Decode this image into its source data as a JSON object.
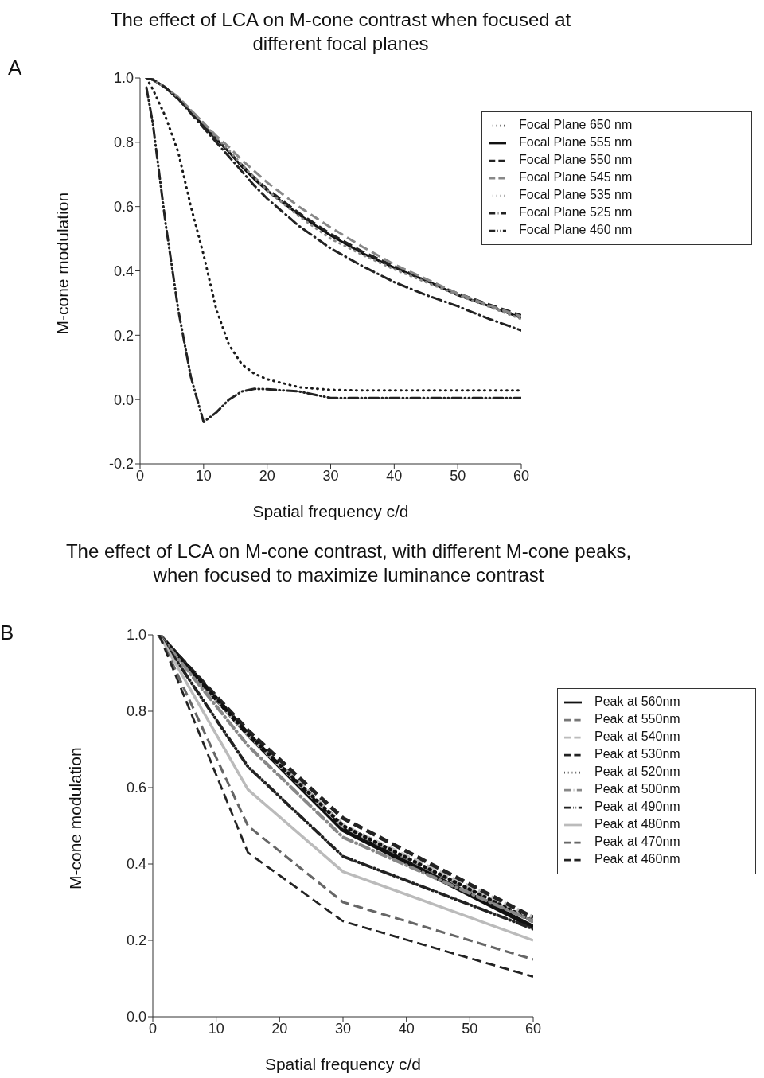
{
  "chart_data": [
    {
      "type": "line",
      "title": "The effect of LCA on M-cone contrast when focused at different focal planes",
      "xlabel": "Spatial frequency c/d",
      "ylabel": "M-cone modulation",
      "annotations": [
        "A"
      ],
      "legend": "top right",
      "xlim": [
        0,
        60
      ],
      "xticks": [
        0,
        10,
        20,
        30,
        40,
        50,
        60
      ],
      "ylim": [
        -0.2,
        1.0
      ],
      "yticks": [
        {
          "value": -0.2,
          "label": "-0.2"
        },
        {
          "value": 0,
          "label": "0.0"
        },
        {
          "value": 0.2,
          "label": "0.2"
        },
        {
          "value": 0.4,
          "label": "0.4"
        },
        {
          "value": 0.6,
          "label": "0.6"
        },
        {
          "value": 0.8,
          "label": "0.8"
        },
        {
          "value": 1.0,
          "label": "1.0"
        }
      ],
      "x": [
        1,
        2,
        4,
        6,
        8,
        10,
        12,
        14,
        16,
        18,
        20,
        25,
        30,
        35,
        40,
        45,
        50,
        55,
        60
      ],
      "series": [
        {
          "name": "Focal Plane 650 nm",
          "color": "#1a1a1a",
          "line_style": "dotted",
          "values": [
            1,
            0.965,
            0.88,
            0.77,
            0.6,
            0.45,
            0.28,
            0.17,
            0.11,
            0.08,
            0.063,
            0.038,
            0.03,
            0.028,
            0.028,
            0.028,
            0.028,
            0.028,
            0.028
          ]
        },
        {
          "name": "Focal Plane 555 nm",
          "color": "#111111",
          "line_style": "solid",
          "values": [
            1,
            0.995,
            0.97,
            0.935,
            0.895,
            0.85,
            0.81,
            0.77,
            0.725,
            0.685,
            0.65,
            0.575,
            0.51,
            0.455,
            0.41,
            0.37,
            0.325,
            0.29,
            0.254
          ]
        },
        {
          "name": "Focal Plane 550 nm",
          "color": "#222222",
          "line_style": "dashed",
          "values": [
            1,
            0.995,
            0.97,
            0.935,
            0.895,
            0.85,
            0.81,
            0.77,
            0.73,
            0.69,
            0.655,
            0.58,
            0.515,
            0.46,
            0.415,
            0.37,
            0.33,
            0.295,
            0.262
          ]
        },
        {
          "name": "Focal Plane 545 nm",
          "color": "#888888",
          "line_style": "dashed",
          "values": [
            1,
            0.995,
            0.97,
            0.94,
            0.9,
            0.86,
            0.82,
            0.785,
            0.745,
            0.71,
            0.675,
            0.6,
            0.535,
            0.475,
            0.42,
            0.375,
            0.33,
            0.292,
            0.258
          ]
        },
        {
          "name": "Focal Plane 535 nm",
          "color": "#888888",
          "line_style": "dotted",
          "values": [
            1,
            0.995,
            0.97,
            0.94,
            0.9,
            0.86,
            0.815,
            0.775,
            0.73,
            0.69,
            0.65,
            0.57,
            0.5,
            0.45,
            0.405,
            0.365,
            0.325,
            0.288,
            0.25
          ]
        },
        {
          "name": "Focal Plane 525 nm",
          "color": "#222222",
          "line_style": "dashdot",
          "values": [
            1,
            0.995,
            0.97,
            0.935,
            0.89,
            0.845,
            0.8,
            0.755,
            0.71,
            0.665,
            0.625,
            0.54,
            0.47,
            0.415,
            0.365,
            0.325,
            0.29,
            0.25,
            0.215
          ]
        },
        {
          "name": "Focal Plane 460 nm",
          "color": "#222222",
          "line_style": "dashdotdot",
          "values": [
            0.97,
            0.86,
            0.55,
            0.28,
            0.07,
            -0.07,
            -0.04,
            0.0,
            0.025,
            0.033,
            0.032,
            0.025,
            0.005,
            0.005,
            0.005,
            0.005,
            0.005,
            0.005,
            0.005
          ]
        }
      ]
    },
    {
      "type": "line",
      "title": "The effect of LCA on M-cone contrast, with different M-cone peaks, when focused to maximize luminance contrast",
      "xlabel": "Spatial frequency c/d",
      "ylabel": "M-cone modulation",
      "annotations": [
        "B"
      ],
      "legend": "right",
      "xlim": [
        0,
        60
      ],
      "xticks": [
        0,
        10,
        20,
        30,
        40,
        50,
        60
      ],
      "ylim": [
        0,
        1.0
      ],
      "yticks": [
        {
          "value": 0,
          "label": "0.0"
        },
        {
          "value": 0.2,
          "label": "0.2"
        },
        {
          "value": 0.4,
          "label": "0.4"
        },
        {
          "value": 0.6,
          "label": "0.6"
        },
        {
          "value": 0.8,
          "label": "0.8"
        },
        {
          "value": 1.0,
          "label": "1.0"
        }
      ],
      "x": [
        1,
        15,
        30,
        60
      ],
      "series": [
        {
          "name": "Peak at 560nm",
          "color": "#111111",
          "line_style": "solid",
          "values": [
            1,
            0.74,
            0.49,
            0.235
          ]
        },
        {
          "name": "Peak at 550nm",
          "color": "#777777",
          "line_style": "dashed",
          "values": [
            1,
            0.74,
            0.5,
            0.25
          ]
        },
        {
          "name": "Peak at 540nm",
          "color": "#bbbbbb",
          "line_style": "dashed",
          "values": [
            1,
            0.74,
            0.5,
            0.26
          ]
        },
        {
          "name": "Peak at 530nm",
          "color": "#222222",
          "line_style": "dashed",
          "values": [
            1,
            0.75,
            0.52,
            0.26
          ]
        },
        {
          "name": "Peak at 520nm",
          "color": "#111111",
          "line_style": "dotted",
          "values": [
            1,
            0.74,
            0.5,
            0.25
          ]
        },
        {
          "name": "Peak at 500nm",
          "color": "#888888",
          "line_style": "dashdot",
          "values": [
            1,
            0.71,
            0.47,
            0.25
          ]
        },
        {
          "name": "Peak at 490nm",
          "color": "#222222",
          "line_style": "dashdotdot",
          "values": [
            1,
            0.655,
            0.42,
            0.23
          ]
        },
        {
          "name": "Peak at 480nm",
          "color": "#bbbbbb",
          "line_style": "solid",
          "values": [
            1,
            0.595,
            0.38,
            0.2
          ]
        },
        {
          "name": "Peak at 470nm",
          "color": "#666666",
          "line_style": "dashed",
          "values": [
            1,
            0.5,
            0.3,
            0.15
          ]
        },
        {
          "name": "Peak at 460nm",
          "color": "#222222",
          "line_style": "dashed",
          "values": [
            1,
            0.43,
            0.25,
            0.105
          ]
        }
      ]
    }
  ]
}
